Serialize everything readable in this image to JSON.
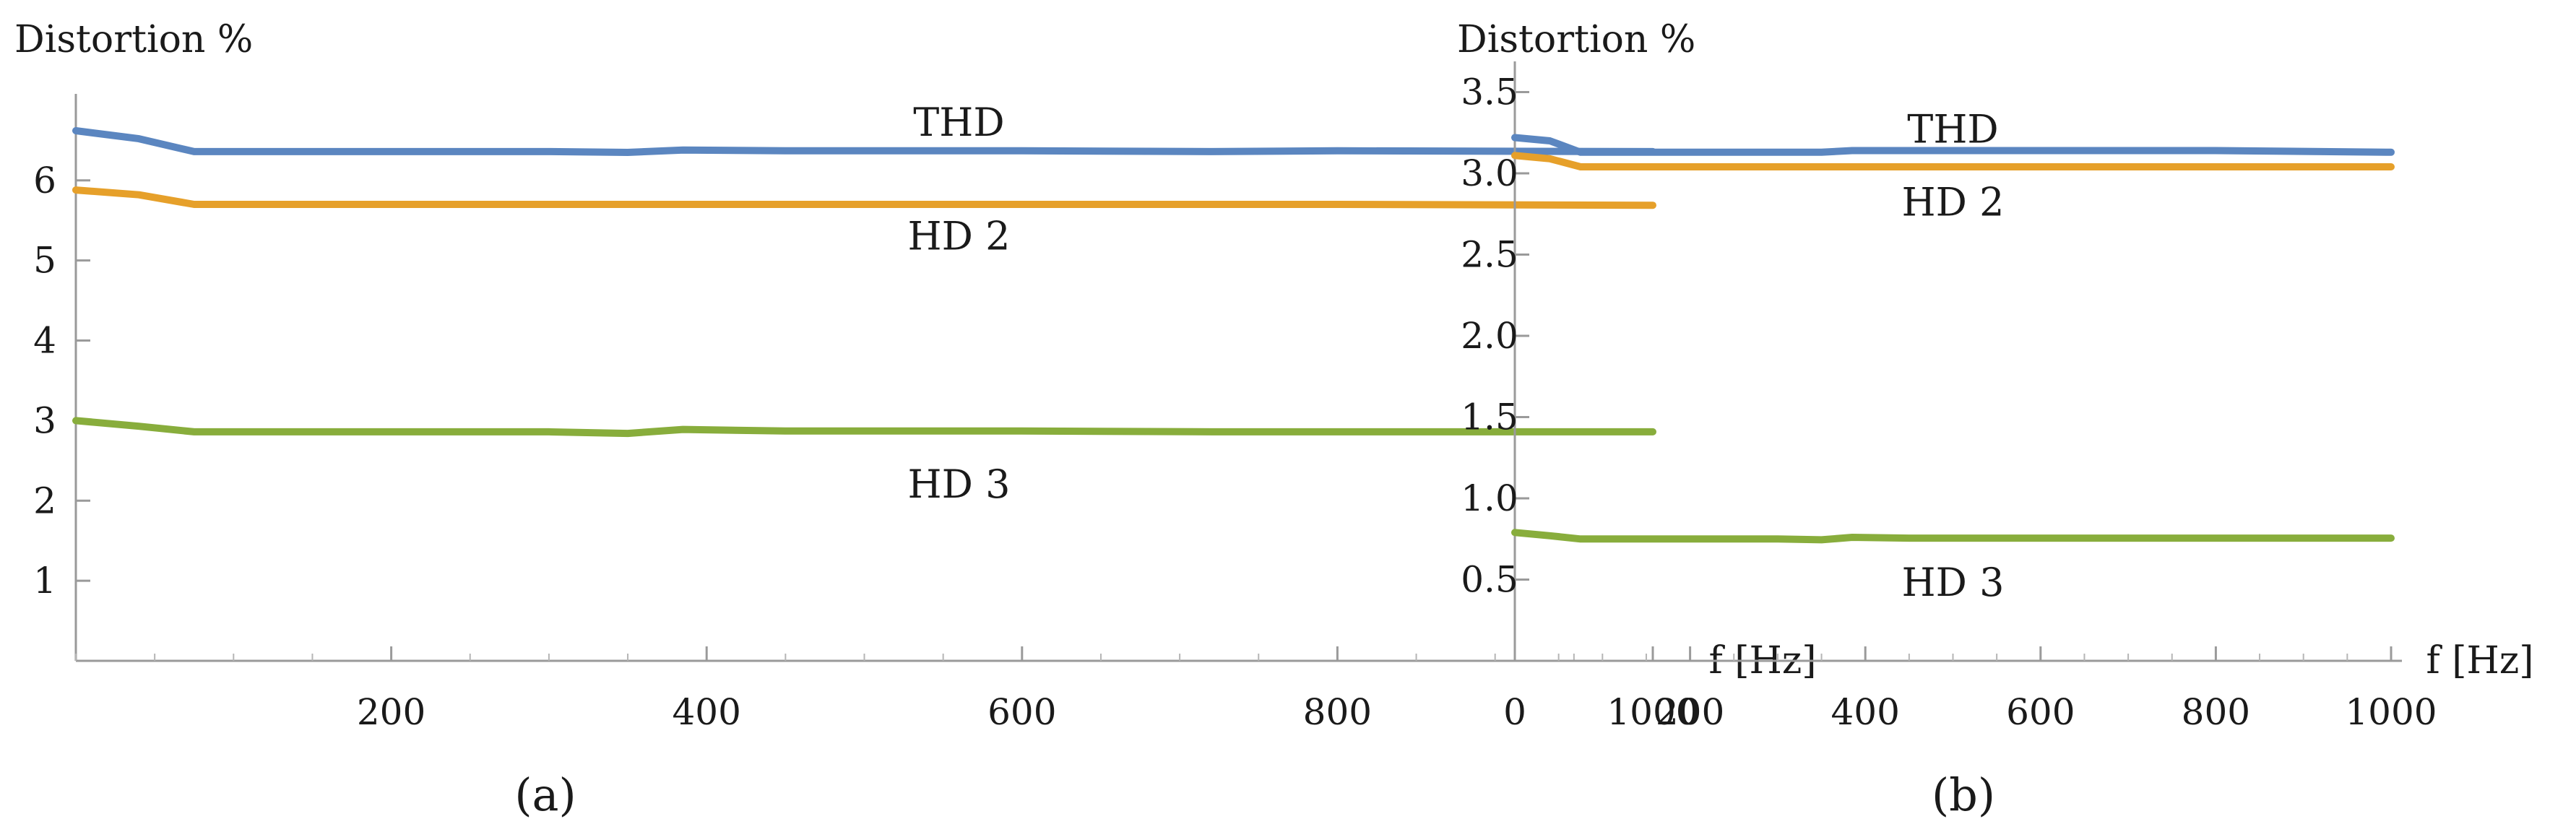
{
  "chart_data": [
    {
      "type": "line",
      "panel_label": "(a)",
      "ylabel": "Distortion %",
      "xlabel": "f  [Hz]",
      "xlim": [
        0,
        1000
      ],
      "ylim": [
        0,
        6.9
      ],
      "xticks": [
        200,
        400,
        600,
        800,
        1000
      ],
      "xtick_labels": [
        "200",
        "400",
        "600",
        "800",
        "1000"
      ],
      "yticks": [
        1,
        2,
        3,
        4,
        5,
        6
      ],
      "ytick_labels": [
        "1",
        "2",
        "3",
        "4",
        "5",
        "6"
      ],
      "grid": false,
      "legend": "inline labels",
      "series": [
        {
          "name": "THD",
          "color": "#5b86c0",
          "label_at": [
            560,
            6.72
          ],
          "x": [
            0,
            40,
            75,
            200,
            300,
            350,
            385,
            450,
            600,
            720,
            800,
            1000
          ],
          "y": [
            6.62,
            6.52,
            6.36,
            6.36,
            6.36,
            6.35,
            6.38,
            6.37,
            6.37,
            6.36,
            6.37,
            6.36
          ]
        },
        {
          "name": "HD 2",
          "color": "#e6a02a",
          "label_at": [
            560,
            5.3
          ],
          "x": [
            0,
            40,
            75,
            200,
            300,
            350,
            385,
            450,
            600,
            720,
            800,
            1000
          ],
          "y": [
            5.88,
            5.82,
            5.7,
            5.7,
            5.7,
            5.7,
            5.7,
            5.7,
            5.7,
            5.7,
            5.7,
            5.69
          ]
        },
        {
          "name": "HD 3",
          "color": "#88ad3c",
          "label_at": [
            560,
            2.2
          ],
          "x": [
            0,
            40,
            75,
            200,
            300,
            350,
            385,
            450,
            600,
            720,
            800,
            1000
          ],
          "y": [
            3.0,
            2.93,
            2.86,
            2.86,
            2.86,
            2.84,
            2.89,
            2.87,
            2.87,
            2.86,
            2.86,
            2.86
          ]
        }
      ]
    },
    {
      "type": "line",
      "panel_label": "(b)",
      "ylabel": "Distortion %",
      "xlabel": "f [Hz]",
      "xlim": [
        0,
        1000
      ],
      "ylim": [
        0,
        3.6
      ],
      "xticks": [
        0,
        200,
        400,
        600,
        800,
        1000
      ],
      "xtick_labels": [
        "0",
        "200",
        "400",
        "600",
        "800",
        "1000"
      ],
      "yticks": [
        0.5,
        1.0,
        1.5,
        2.0,
        2.5,
        3.0,
        3.5
      ],
      "ytick_labels": [
        "0.5",
        "1.0",
        "1.5",
        "2.0",
        "2.5",
        "3.0",
        "3.5"
      ],
      "grid": false,
      "legend": "inline labels",
      "series": [
        {
          "name": "THD",
          "color": "#5b86c0",
          "label_at": [
            500,
            3.27
          ],
          "x": [
            0,
            40,
            75,
            200,
            300,
            350,
            385,
            450,
            600,
            720,
            800,
            1000
          ],
          "y": [
            3.22,
            3.2,
            3.13,
            3.13,
            3.13,
            3.13,
            3.14,
            3.14,
            3.14,
            3.14,
            3.14,
            3.13
          ]
        },
        {
          "name": "HD 2",
          "color": "#e6a02a",
          "label_at": [
            500,
            2.82
          ],
          "x": [
            0,
            40,
            75,
            200,
            300,
            350,
            385,
            450,
            600,
            720,
            800,
            1000
          ],
          "y": [
            3.11,
            3.09,
            3.04,
            3.04,
            3.04,
            3.04,
            3.04,
            3.04,
            3.04,
            3.04,
            3.04,
            3.04
          ]
        },
        {
          "name": "HD 3",
          "color": "#88ad3c",
          "label_at": [
            500,
            0.48
          ],
          "x": [
            0,
            40,
            75,
            200,
            300,
            350,
            385,
            450,
            600,
            720,
            800,
            1000
          ],
          "y": [
            0.79,
            0.77,
            0.75,
            0.75,
            0.75,
            0.745,
            0.76,
            0.755,
            0.755,
            0.755,
            0.755,
            0.755
          ]
        }
      ]
    }
  ]
}
